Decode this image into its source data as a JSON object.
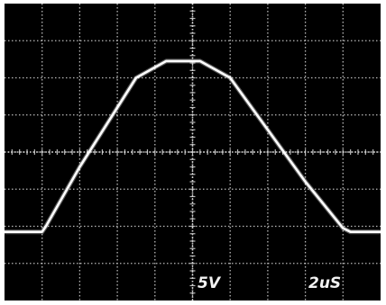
{
  "chart_data": {
    "type": "line",
    "title": "",
    "xlabel": "",
    "ylabel": "",
    "grid": true,
    "divisions": {
      "x": 10,
      "y": 8
    },
    "xlim": [
      0,
      10
    ],
    "ylim": [
      0,
      8
    ],
    "series": [
      {
        "points": [
          [
            0.0,
            1.85
          ],
          [
            1.0,
            1.85
          ],
          [
            1.1,
            2.0
          ],
          [
            2.0,
            3.6
          ],
          [
            3.0,
            5.2
          ],
          [
            3.5,
            6.0
          ],
          [
            4.3,
            6.45
          ],
          [
            5.2,
            6.45
          ],
          [
            6.0,
            6.0
          ],
          [
            7.0,
            4.6
          ],
          [
            8.0,
            3.2
          ],
          [
            9.0,
            1.95
          ],
          [
            9.2,
            1.85
          ],
          [
            10.0,
            1.85
          ]
        ]
      }
    ],
    "scale_labels": {
      "volts_per_div": "5V",
      "time_per_div": "2uS"
    }
  },
  "colors": {
    "screen": "#000000",
    "grid": "#d9d9d9",
    "trace": "#ffffff"
  }
}
